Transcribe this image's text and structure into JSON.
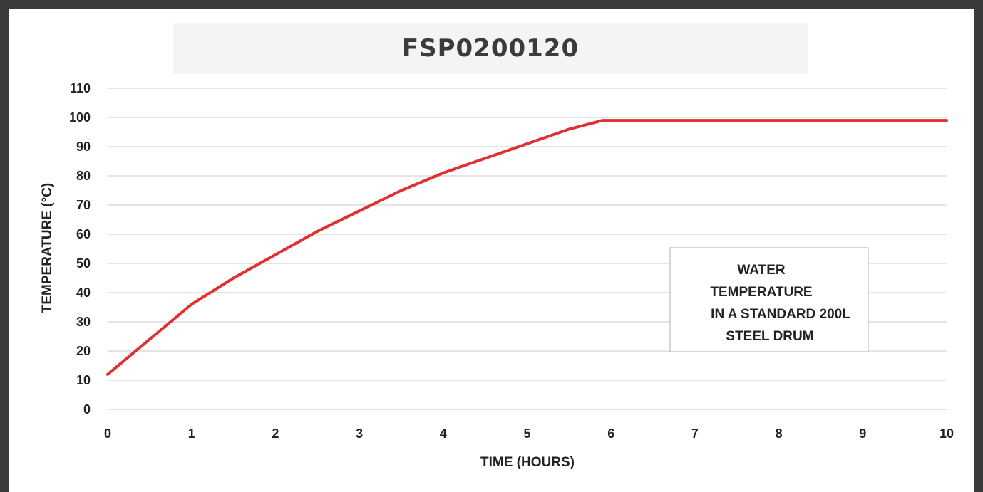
{
  "chart_data": {
    "type": "line",
    "title": "FSP0200120",
    "xlabel": "TIME (HOURS)",
    "ylabel": "TEMPERATURE (°C)",
    "xlim": [
      0,
      10
    ],
    "ylim": [
      0,
      110
    ],
    "x_ticks": [
      "0",
      "1",
      "2",
      "3",
      "4",
      "5",
      "6",
      "7",
      "8",
      "9",
      "10"
    ],
    "y_ticks": [
      "0",
      "10",
      "20",
      "30",
      "40",
      "50",
      "60",
      "70",
      "80",
      "90",
      "100",
      "110"
    ],
    "grid": "horizontal",
    "annotation": [
      "WATER",
      "TEMPERATURE",
      "IN A STANDARD 200L",
      "STEEL DRUM"
    ],
    "series": [
      {
        "color": "#e03030",
        "x": [
          0,
          0.25,
          0.5,
          0.75,
          1,
          1.5,
          2,
          2.5,
          3,
          3.5,
          4,
          4.5,
          5,
          5.5,
          5.9,
          6,
          7,
          8,
          9,
          10
        ],
        "y": [
          12,
          18,
          24,
          30,
          36,
          45,
          53,
          61,
          68,
          75,
          81,
          86,
          91,
          96,
          99,
          99,
          99,
          99,
          99,
          99
        ]
      }
    ]
  }
}
